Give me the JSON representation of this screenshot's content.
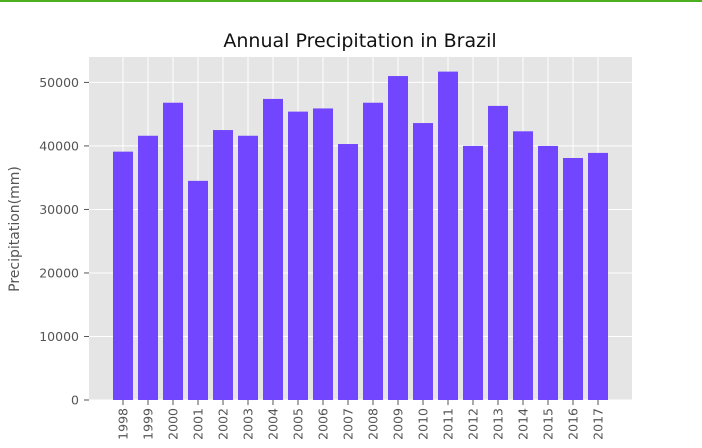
{
  "colors": {
    "plot_background": "#e5e5e5",
    "grid": "#ffffff",
    "bar": "#6a3dff",
    "bar_edge": "#5a2df5",
    "tick_text": "#555555",
    "title_text": "#111111",
    "top_accent": "#4caf1f"
  },
  "chart_data": {
    "type": "bar",
    "title": "Annual Precipitation in Brazil",
    "xlabel": "",
    "ylabel": "Precipitation(mm)",
    "categories": [
      "1998",
      "1999",
      "2000",
      "2001",
      "2002",
      "2003",
      "2004",
      "2005",
      "2006",
      "2007",
      "2008",
      "2009",
      "2010",
      "2011",
      "2012",
      "2013",
      "2014",
      "2015",
      "2016",
      "2017"
    ],
    "values": [
      39100,
      41600,
      46800,
      34500,
      42500,
      41600,
      47400,
      45400,
      45900,
      40300,
      46800,
      51000,
      43600,
      51700,
      40000,
      46300,
      42300,
      40000,
      38100,
      38900
    ],
    "ylim": [
      0,
      54000
    ],
    "yticks": [
      0,
      10000,
      20000,
      30000,
      40000,
      50000
    ],
    "ytick_labels": [
      "0",
      "10000",
      "20000",
      "30000",
      "40000",
      "50000"
    ],
    "grid": true,
    "style": "ggplot"
  }
}
